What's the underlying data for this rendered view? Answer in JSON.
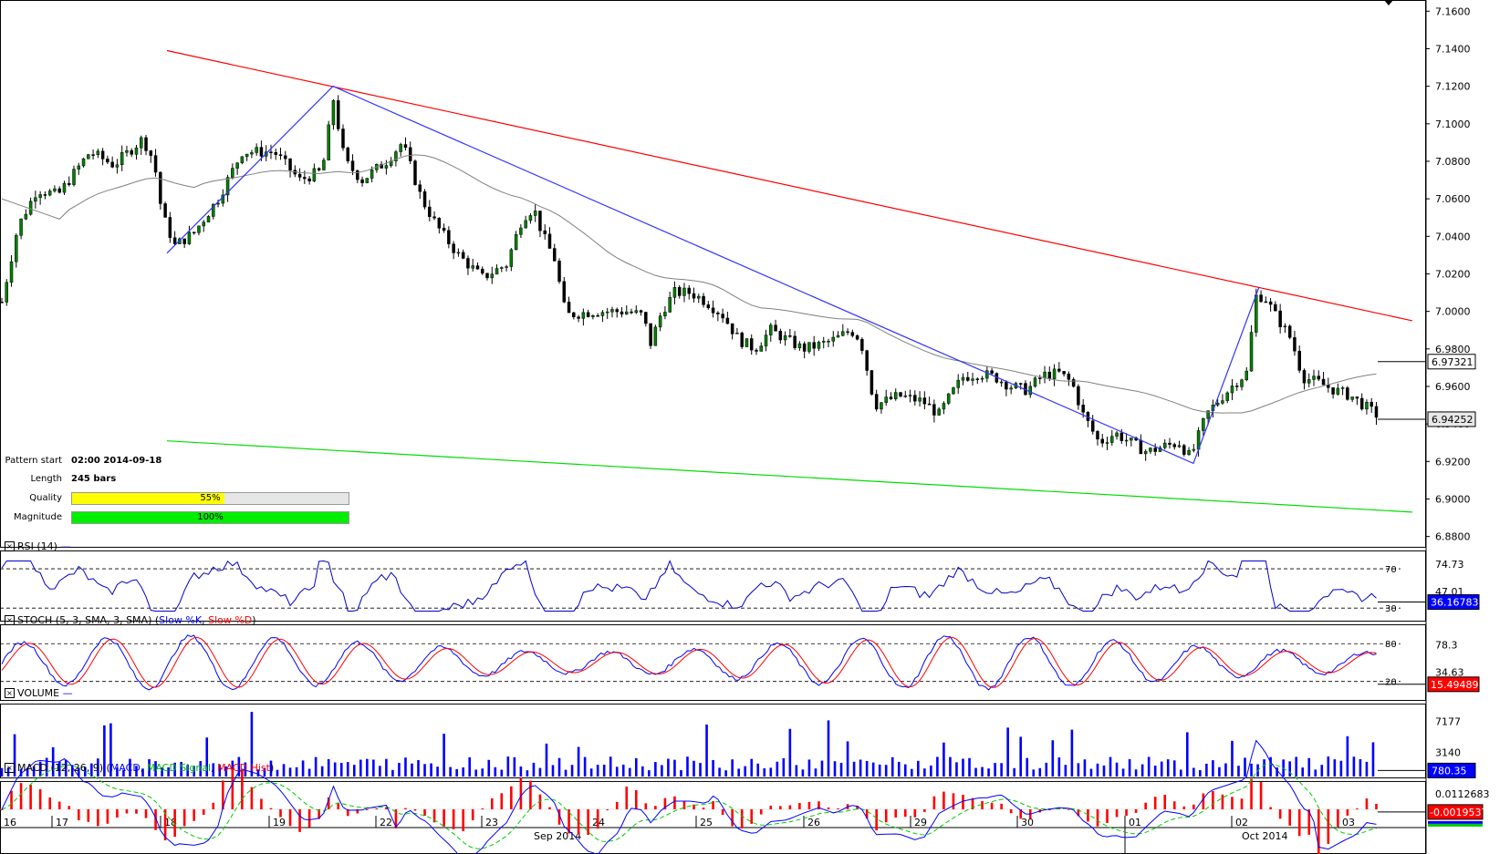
{
  "pattern_info": {
    "start_label": "Pattern start",
    "start_value": "02:00 2014-09-18",
    "length_label": "Length",
    "length_value": "245 bars",
    "quality_label": "Quality",
    "quality_value": "55%",
    "quality_fraction": 0.55,
    "magnitude_label": "Magnitude",
    "magnitude_value": "100%",
    "magnitude_fraction": 1.0
  },
  "colors": {
    "up_candle": "#008000",
    "down_candle": "#000000",
    "resistance": "#ff0000",
    "support": "#00dd00",
    "zigzag": "#3333ff",
    "moving_average": "#808080",
    "rsi": "#0000cc",
    "stoch_k": "#0000ff",
    "stoch_d": "#ff0000",
    "volume": "#0000ff",
    "macd": "#0000ff",
    "macd_signal": "#00cc00",
    "macd_hist": "#ff0000",
    "quality_bar": "#ffff00",
    "magnitude_bar": "#00ee00"
  },
  "chart_data": [
    {
      "type": "candlestick",
      "panel": "price",
      "y_ticks": [
        "7.1600",
        "7.1400",
        "7.1200",
        "7.1000",
        "7.0800",
        "7.0600",
        "7.0400",
        "7.0200",
        "7.0000",
        "6.9800",
        "6.9600",
        "6.9400",
        "6.9200",
        "6.9000",
        "6.8800"
      ],
      "ylim": [
        6.875,
        7.165
      ],
      "price_labels": [
        "6.97321",
        "6.94252"
      ],
      "price_label_values": [
        6.97321,
        6.94252
      ],
      "day_labels": [
        "16",
        "17",
        "18",
        "19",
        "22",
        "23",
        "24",
        "25",
        "26",
        "29",
        "30",
        "01",
        "02",
        "03"
      ],
      "month_labels": [
        "Sep 2014",
        "Oct 2014"
      ],
      "path_points": [
        [
          0,
          7.005
        ],
        [
          10,
          7.045
        ],
        [
          22,
          7.065
        ],
        [
          35,
          7.062
        ],
        [
          55,
          7.085
        ],
        [
          70,
          7.078
        ],
        [
          88,
          7.092
        ],
        [
          95,
          7.08
        ],
        [
          100,
          7.052
        ],
        [
          108,
          7.035
        ],
        [
          120,
          7.042
        ],
        [
          135,
          7.06
        ],
        [
          150,
          7.085
        ],
        [
          170,
          7.085
        ],
        [
          186,
          7.07
        ],
        [
          200,
          7.075
        ],
        [
          207,
          7.113
        ],
        [
          214,
          7.08
        ],
        [
          225,
          7.07
        ],
        [
          240,
          7.08
        ],
        [
          250,
          7.09
        ],
        [
          262,
          7.06
        ],
        [
          272,
          7.045
        ],
        [
          285,
          7.03
        ],
        [
          300,
          7.018
        ],
        [
          315,
          7.025
        ],
        [
          325,
          7.05
        ],
        [
          332,
          7.055
        ],
        [
          338,
          7.04
        ],
        [
          345,
          7.028
        ],
        [
          352,
          6.998
        ],
        [
          370,
          7.0
        ],
        [
          390,
          7.0
        ],
        [
          400,
          6.998
        ],
        [
          405,
          6.983
        ],
        [
          412,
          7.0
        ],
        [
          420,
          7.01
        ],
        [
          430,
          7.01
        ],
        [
          440,
          7.005
        ],
        [
          450,
          6.998
        ],
        [
          460,
          6.985
        ],
        [
          470,
          6.98
        ],
        [
          480,
          6.99
        ],
        [
          490,
          6.985
        ],
        [
          500,
          6.98
        ],
        [
          510,
          6.982
        ],
        [
          520,
          6.985
        ],
        [
          530,
          6.99
        ],
        [
          536,
          6.985
        ],
        [
          545,
          6.95
        ],
        [
          560,
          6.955
        ],
        [
          575,
          6.952
        ],
        [
          585,
          6.945
        ],
        [
          592,
          6.955
        ],
        [
          600,
          6.965
        ],
        [
          610,
          6.967
        ],
        [
          620,
          6.965
        ],
        [
          630,
          6.96
        ],
        [
          640,
          6.958
        ],
        [
          650,
          6.966
        ],
        [
          660,
          6.967
        ],
        [
          668,
          6.962
        ],
        [
          675,
          6.945
        ],
        [
          685,
          6.93
        ],
        [
          695,
          6.935
        ],
        [
          705,
          6.93
        ],
        [
          715,
          6.925
        ],
        [
          725,
          6.928
        ],
        [
          735,
          6.93
        ],
        [
          742,
          6.922
        ],
        [
          752,
          6.945
        ],
        [
          760,
          6.953
        ],
        [
          770,
          6.962
        ],
        [
          778,
          6.968
        ],
        [
          782,
          7.008
        ],
        [
          788,
          7.008
        ],
        [
          795,
          6.998
        ],
        [
          805,
          6.985
        ],
        [
          812,
          6.965
        ],
        [
          822,
          6.962
        ],
        [
          832,
          6.958
        ],
        [
          842,
          6.955
        ],
        [
          850,
          6.95
        ],
        [
          858,
          6.945
        ]
      ],
      "annotations": {
        "resistance": [
          [
            7.139,
            7.0
          ],
          [
            6.995,
            869
          ]
        ],
        "support": [
          [
            6.931,
            7.0
          ],
          [
            6.893,
            869
          ]
        ],
        "zigzag": [
          [
            7.031,
            7.12
          ],
          [
            7.12,
            6.919
          ],
          [
            6.919,
            7.013
          ]
        ]
      }
    },
    {
      "type": "line",
      "panel": "rsi",
      "title": "RSI (14)",
      "levels": [
        "70",
        "30"
      ],
      "y_ticks": [
        "74.73",
        "47.01"
      ],
      "last_value": "36.16783",
      "ylim": [
        20,
        85
      ]
    },
    {
      "type": "line",
      "panel": "stoch",
      "title": "STOCH (5, 3, SMA, 3, SMA)",
      "series": [
        {
          "name": "Slow %K",
          "color": "#0000ff"
        },
        {
          "name": "Slow %D",
          "color": "#ff0000"
        }
      ],
      "levels": [
        "80",
        "20"
      ],
      "y_ticks": [
        "78.3",
        "34.63"
      ],
      "last_value": "15.49489",
      "ylim": [
        -5,
        105
      ]
    },
    {
      "type": "bar",
      "panel": "volume",
      "title": "VOLUME",
      "y_ticks": [
        "7177",
        "3140"
      ],
      "last_value": "780.35",
      "ylim": [
        0,
        9000
      ]
    },
    {
      "type": "line",
      "panel": "macd",
      "title": "MACD (12, 26, 9)",
      "series": [
        {
          "name": "MACD",
          "color": "#0000ff"
        },
        {
          "name": "MACD Signal",
          "color": "#00cc00"
        },
        {
          "name": "MACD Hist",
          "color": "#ff0000"
        }
      ],
      "y_ticks": [
        "0.0112683"
      ],
      "last_value": "-0.0019537",
      "ylim": [
        -0.03,
        0.018
      ]
    }
  ]
}
